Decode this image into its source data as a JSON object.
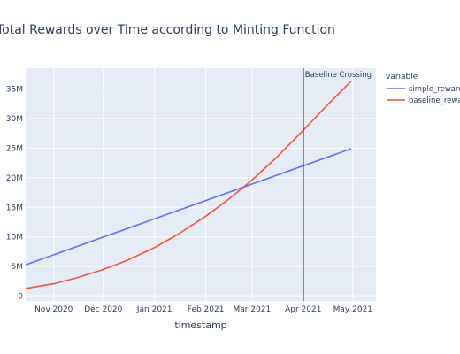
{
  "chart_data": {
    "type": "line",
    "title": "Total Rewards over Time according to Minting Function",
    "xlabel": "timestamp",
    "ylabel": "",
    "x_ticks": [
      "Nov 2020",
      "Dec 2020",
      "Jan 2021",
      "Feb 2021",
      "Mar 2021",
      "Apr 2021",
      "May 2021"
    ],
    "y_ticks": [
      "0",
      "5M",
      "10M",
      "15M",
      "20M",
      "25M",
      "30M",
      "35M"
    ],
    "xlim": [
      "2020-10-15",
      "2021-05-15"
    ],
    "ylim": [
      -0.8,
      38.5
    ],
    "y_unit": "millions",
    "grid": true,
    "legend": {
      "title": "variable",
      "placement": "right"
    },
    "series": [
      {
        "name": "simple_reward",
        "color": "#636efa",
        "x": [
          "2020-10-15",
          "2021-04-30"
        ],
        "y": [
          5.3,
          24.9
        ]
      },
      {
        "name": "baseline_reward",
        "color": "#ef553b",
        "x": [
          "2020-10-15",
          "2020-11-01",
          "2020-11-15",
          "2020-12-01",
          "2020-12-15",
          "2021-01-01",
          "2021-01-15",
          "2021-02-01",
          "2021-02-15",
          "2021-03-01",
          "2021-03-15",
          "2021-04-01",
          "2021-04-15",
          "2021-04-30"
        ],
        "y": [
          1.3,
          2.1,
          3.1,
          4.5,
          6.0,
          8.2,
          10.4,
          13.5,
          16.4,
          19.6,
          23.2,
          28.0,
          32.1,
          36.3
        ]
      }
    ],
    "annotations": [
      {
        "type": "vline",
        "x": "2021-04-01",
        "label": "Baseline Crossing",
        "color": "#1f2d4d"
      }
    ]
  }
}
